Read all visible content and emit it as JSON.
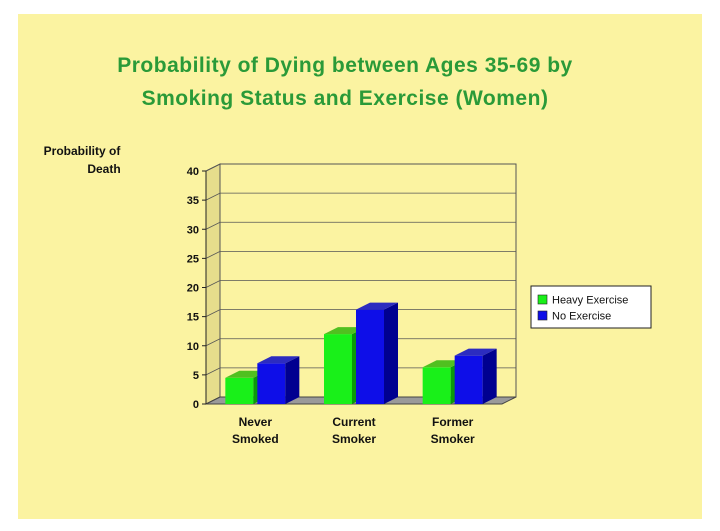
{
  "chart_data": {
    "type": "bar",
    "title": [
      "Probability of Dying between Ages 35-69 by",
      "Smoking Status and Exercise (Women)"
    ],
    "ylabel": [
      "Probability of",
      "Death"
    ],
    "xlabel": "",
    "categories": [
      [
        "Never",
        "Smoked"
      ],
      [
        "Current",
        "Smoker"
      ],
      [
        "Former",
        "Smoker"
      ]
    ],
    "series": [
      {
        "name": "Heavy Exercise",
        "values": [
          4.5,
          12.0,
          6.3
        ],
        "color": "#19f019",
        "side_color": "#0b9a0b",
        "top_color": "#50c020"
      },
      {
        "name": "No Exercise",
        "values": [
          7.0,
          16.2,
          8.3
        ],
        "color": "#0e0ee8",
        "side_color": "#000090",
        "top_color": "#2c2cc0"
      }
    ],
    "ylim": [
      0,
      40
    ],
    "yticks": [
      0,
      5,
      10,
      15,
      20,
      25,
      30,
      35,
      40
    ],
    "grid": true,
    "legend_position": "right",
    "three_d": true,
    "colors": {
      "background": "#fbf3a1",
      "plot_area": "#fbf3a1",
      "title": "#2a9a38",
      "wall": "#9a9a9a"
    }
  }
}
